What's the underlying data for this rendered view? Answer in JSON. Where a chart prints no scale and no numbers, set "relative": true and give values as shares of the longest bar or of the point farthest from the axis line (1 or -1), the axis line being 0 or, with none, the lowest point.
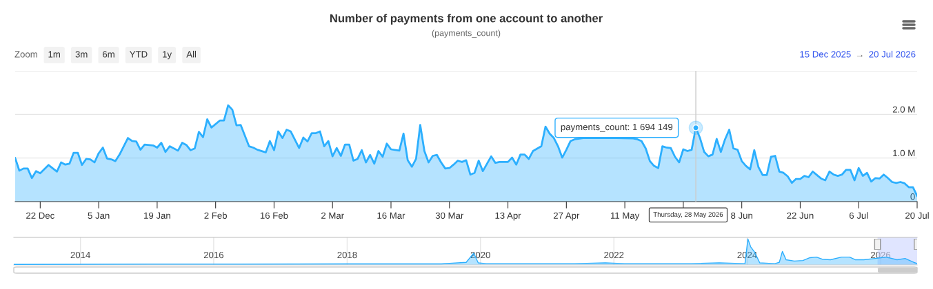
{
  "chart_data": [
    {
      "type": "area",
      "title": "Number of payments from one account to another",
      "subtitle": "(payments_count)",
      "series": [
        {
          "color": "#2caffe",
          "x": [
            "2025-12-16",
            "2025-12-17",
            "2025-12-18",
            "2025-12-19",
            "2025-12-20",
            "2025-12-21",
            "2025-12-22",
            "2025-12-24",
            "2025-12-26",
            "2025-12-27",
            "2025-12-28",
            "2025-12-29",
            "2025-12-30",
            "2025-12-31",
            "2026-01-01",
            "2026-01-02",
            "2026-01-03",
            "2026-01-04",
            "2026-01-05",
            "2026-01-06",
            "2026-01-07",
            "2026-01-08",
            "2026-01-09",
            "2026-01-10",
            "2026-01-12",
            "2026-01-13",
            "2026-01-14",
            "2026-01-15",
            "2026-01-16",
            "2026-01-18",
            "2026-01-19",
            "2026-01-20",
            "2026-01-21",
            "2026-01-22",
            "2026-01-24",
            "2026-01-25",
            "2026-01-26",
            "2026-01-27",
            "2026-01-28",
            "2026-01-29",
            "2026-01-30",
            "2026-01-31",
            "2026-02-01",
            "2026-02-03",
            "2026-02-04",
            "2026-02-05",
            "2026-02-06",
            "2026-02-07",
            "2026-02-08",
            "2026-02-10",
            "2026-02-11",
            "2026-02-12",
            "2026-02-14",
            "2026-02-15",
            "2026-02-16",
            "2026-02-17",
            "2026-02-18",
            "2026-02-19",
            "2026-02-20",
            "2026-02-22",
            "2026-02-23",
            "2026-02-24",
            "2026-02-25",
            "2026-02-26",
            "2026-02-27",
            "2026-02-28",
            "2026-03-01",
            "2026-03-02",
            "2026-03-03",
            "2026-03-04",
            "2026-03-05",
            "2026-03-06",
            "2026-03-07",
            "2026-03-08",
            "2026-03-09",
            "2026-03-10",
            "2026-03-11",
            "2026-03-12",
            "2026-03-13",
            "2026-03-14",
            "2026-03-15",
            "2026-03-16",
            "2026-03-18",
            "2026-03-19",
            "2026-03-20",
            "2026-03-21",
            "2026-03-22",
            "2026-03-23",
            "2026-03-24",
            "2026-03-25",
            "2026-03-26",
            "2026-03-27",
            "2026-03-28",
            "2026-03-29",
            "2026-03-30",
            "2026-03-31",
            "2026-04-01",
            "2026-04-02",
            "2026-04-03",
            "2026-04-04",
            "2026-04-05",
            "2026-04-06",
            "2026-04-07",
            "2026-04-08",
            "2026-04-09",
            "2026-04-10",
            "2026-04-11",
            "2026-04-13",
            "2026-04-14",
            "2026-04-15",
            "2026-04-16",
            "2026-04-17",
            "2026-04-18",
            "2026-04-19",
            "2026-04-21",
            "2026-04-22",
            "2026-04-23",
            "2026-04-24",
            "2026-04-25",
            "2026-04-26",
            "2026-04-27",
            "2026-04-28",
            "2026-04-29",
            "2026-05-01",
            "2026-05-05",
            "2026-05-09",
            "2026-05-13",
            "2026-05-14",
            "2026-05-15",
            "2026-05-16",
            "2026-05-17",
            "2026-05-18",
            "2026-05-19",
            "2026-05-20",
            "2026-05-21",
            "2026-05-22",
            "2026-05-23",
            "2026-05-24",
            "2026-05-25",
            "2026-05-26",
            "2026-05-27",
            "2026-05-28",
            "2026-05-29",
            "2026-05-30",
            "2026-05-31",
            "2026-06-01",
            "2026-06-02",
            "2026-06-03",
            "2026-06-04",
            "2026-06-05",
            "2026-06-06",
            "2026-06-07",
            "2026-06-08",
            "2026-06-09",
            "2026-06-10",
            "2026-06-11",
            "2026-06-12",
            "2026-06-13",
            "2026-06-14",
            "2026-06-15",
            "2026-06-16",
            "2026-06-17",
            "2026-06-18",
            "2026-06-19",
            "2026-06-20",
            "2026-06-21",
            "2026-06-22",
            "2026-06-23",
            "2026-06-24",
            "2026-06-25",
            "2026-06-26",
            "2026-06-27",
            "2026-06-28",
            "2026-06-29",
            "2026-06-30",
            "2026-07-01",
            "2026-07-02",
            "2026-07-03",
            "2026-07-04",
            "2026-07-05",
            "2026-07-06",
            "2026-07-07",
            "2026-07-08",
            "2026-07-09",
            "2026-07-10",
            "2026-07-11",
            "2026-07-12",
            "2026-07-13",
            "2026-07-14",
            "2026-07-15",
            "2026-07-16",
            "2026-07-17",
            "2026-07-18",
            "2026-07-19",
            "2026-07-20"
          ],
          "values": [
            1000000,
            710000,
            760000,
            760000,
            540000,
            700000,
            650000,
            840000,
            690000,
            900000,
            850000,
            870000,
            1120000,
            1120000,
            840000,
            980000,
            970000,
            900000,
            1110000,
            1240000,
            990000,
            970000,
            930000,
            1080000,
            1460000,
            1390000,
            1380000,
            1190000,
            1310000,
            1290000,
            1240000,
            1350000,
            1140000,
            1270000,
            1170000,
            1350000,
            1300000,
            1180000,
            1220000,
            1600000,
            1480000,
            1890000,
            1700000,
            1860000,
            1860000,
            2210000,
            2110000,
            1750000,
            1760000,
            1270000,
            1240000,
            1190000,
            1130000,
            1390000,
            1180000,
            1610000,
            1460000,
            1650000,
            1610000,
            1230000,
            1470000,
            1380000,
            1570000,
            1570000,
            1610000,
            1270000,
            1390000,
            1040000,
            1230000,
            1050000,
            1310000,
            1310000,
            940000,
            980000,
            1180000,
            900000,
            1070000,
            870000,
            1160000,
            1030000,
            1330000,
            1200000,
            1170000,
            1560000,
            950000,
            800000,
            980000,
            1760000,
            1160000,
            900000,
            1050000,
            1070000,
            900000,
            760000,
            770000,
            850000,
            940000,
            910000,
            950000,
            620000,
            660000,
            940000,
            700000,
            870000,
            1040000,
            890000,
            910000,
            910000,
            1010000,
            850000,
            1080000,
            1080000,
            980000,
            1160000,
            1270000,
            1720000,
            1560000,
            1460000,
            1270000,
            1010000,
            1190000,
            1390000,
            1430000,
            1460000,
            1460000,
            1460000,
            1450000,
            1430000,
            1390000,
            1220000,
            930000,
            820000,
            770000,
            1270000,
            1240000,
            1230000,
            1030000,
            900000,
            1200000,
            1160000,
            1190000,
            1694149,
            1460000,
            1140000,
            1040000,
            1080000,
            1440000,
            1140000,
            1430000,
            1650000,
            1220000,
            1190000,
            930000,
            820000,
            740000,
            1180000,
            790000,
            610000,
            610000,
            1030000,
            1050000,
            690000,
            660000,
            580000,
            430000,
            520000,
            520000,
            590000,
            560000,
            690000,
            610000,
            530000,
            490000,
            690000,
            620000,
            590000,
            620000,
            730000,
            730000,
            490000,
            770000,
            590000,
            660000,
            460000,
            540000,
            530000,
            620000,
            540000,
            450000,
            430000,
            450000,
            420000,
            330000,
            330000,
            130000
          ]
        }
      ],
      "xlim": [
        "2025-12-16",
        "2026-07-20"
      ],
      "xticks": [
        {
          "value": "2025-12-22",
          "label": "22 Dec"
        },
        {
          "value": "2026-01-05",
          "label": "5 Jan"
        },
        {
          "value": "2026-01-19",
          "label": "19 Jan"
        },
        {
          "value": "2026-02-02",
          "label": "2 Feb"
        },
        {
          "value": "2026-02-16",
          "label": "16 Feb"
        },
        {
          "value": "2026-03-02",
          "label": "2 Mar"
        },
        {
          "value": "2026-03-16",
          "label": "16 Mar"
        },
        {
          "value": "2026-03-30",
          "label": "30 Mar"
        },
        {
          "value": "2026-04-13",
          "label": "13 Apr"
        },
        {
          "value": "2026-04-27",
          "label": "27 Apr"
        },
        {
          "value": "2026-05-11",
          "label": "11 May"
        },
        {
          "value": "2026-05-25",
          "label": null
        },
        {
          "value": "2026-06-08",
          "label": "8 Jun"
        },
        {
          "value": "2026-06-22",
          "label": "22 Jun"
        },
        {
          "value": "2026-07-06",
          "label": "6 Jul"
        },
        {
          "value": "2026-07-20",
          "label": "20 Jul"
        }
      ],
      "ylim": [
        0,
        3000000
      ],
      "yticks": [
        0,
        {
          "value": 1000000,
          "label": "1.0 M"
        },
        {
          "value": 2000000,
          "label": "2.0 M"
        },
        {
          "value": 3000000,
          "label": null
        }
      ],
      "grid": "y",
      "ref_lines": [
        {
          "axis": "x",
          "value": "2026-05-28",
          "color": "#cccccc"
        }
      ],
      "annotations": [
        "Zoom",
        "1m",
        "3m",
        "6m",
        "YTD",
        "1y",
        "All",
        "15 Dec 2025",
        "→",
        "20 Jul 2026",
        {
          "text": "payments_count: 1 694 149",
          "x": "2026-05-28",
          "y": 1694149
        },
        {
          "text": "Thursday, 28 May 2026",
          "x": "2026-05-28",
          "y": 0
        }
      ]
    },
    {
      "type": "area",
      "relative": true,
      "tick_labels": "x",
      "grid": "x",
      "series": [
        {
          "color": "#2caffe",
          "x": [
            "2013-01-01",
            "2015-01-01",
            "2016-06-01",
            "2018-01-01",
            "2019-06-01",
            "2019-10-15",
            "2019-11-25",
            "2019-12-20",
            "2020-02-01",
            "2021-06-01",
            "2021-11-15",
            "2022-03-01",
            "2023-03-01",
            "2023-08-01",
            "2023-12-20",
            "2024-01-05",
            "2024-01-20",
            "2024-02-10",
            "2024-03-10",
            "2024-06-01",
            "2024-06-25",
            "2024-07-12",
            "2024-08-01",
            "2024-09-15",
            "2024-11-01",
            "2024-12-10",
            "2025-01-15",
            "2025-02-15",
            "2025-04-01",
            "2025-06-01",
            "2025-07-15",
            "2025-08-15",
            "2025-10-01",
            "2025-12-01",
            "2026-02-01",
            "2026-04-01",
            "2026-05-15",
            "2026-07-01",
            "2026-07-20"
          ],
          "values": [
            0.02,
            0.03,
            0.03,
            0.04,
            0.04,
            0.1,
            0.45,
            0.08,
            0.05,
            0.05,
            0.08,
            0.05,
            0.05,
            0.08,
            0.05,
            1.0,
            0.7,
            0.5,
            0.08,
            0.05,
            0.1,
            0.52,
            0.2,
            0.15,
            0.17,
            0.28,
            0.3,
            0.22,
            0.2,
            0.3,
            0.3,
            0.2,
            0.2,
            0.25,
            0.3,
            0.2,
            0.25,
            0.1,
            0.05
          ]
        }
      ],
      "xlim": [
        "2013-01-01",
        "2026-07-20"
      ],
      "xticks": [
        {
          "value": "2014-01-01",
          "label": "2014"
        },
        {
          "value": "2016-01-01",
          "label": "2016"
        },
        {
          "value": "2018-01-01",
          "label": "2018"
        },
        {
          "value": "2020-01-01",
          "label": "2020"
        },
        {
          "value": "2022-01-01",
          "label": "2022"
        },
        {
          "value": "2024-01-01",
          "label": "2024"
        },
        {
          "value": "2026-01-01",
          "label": "2026"
        }
      ],
      "bands": [
        {
          "axis": "x",
          "from": "2025-12-15",
          "to": "2026-07-20",
          "color": "#ccd3ff"
        }
      ]
    }
  ]
}
